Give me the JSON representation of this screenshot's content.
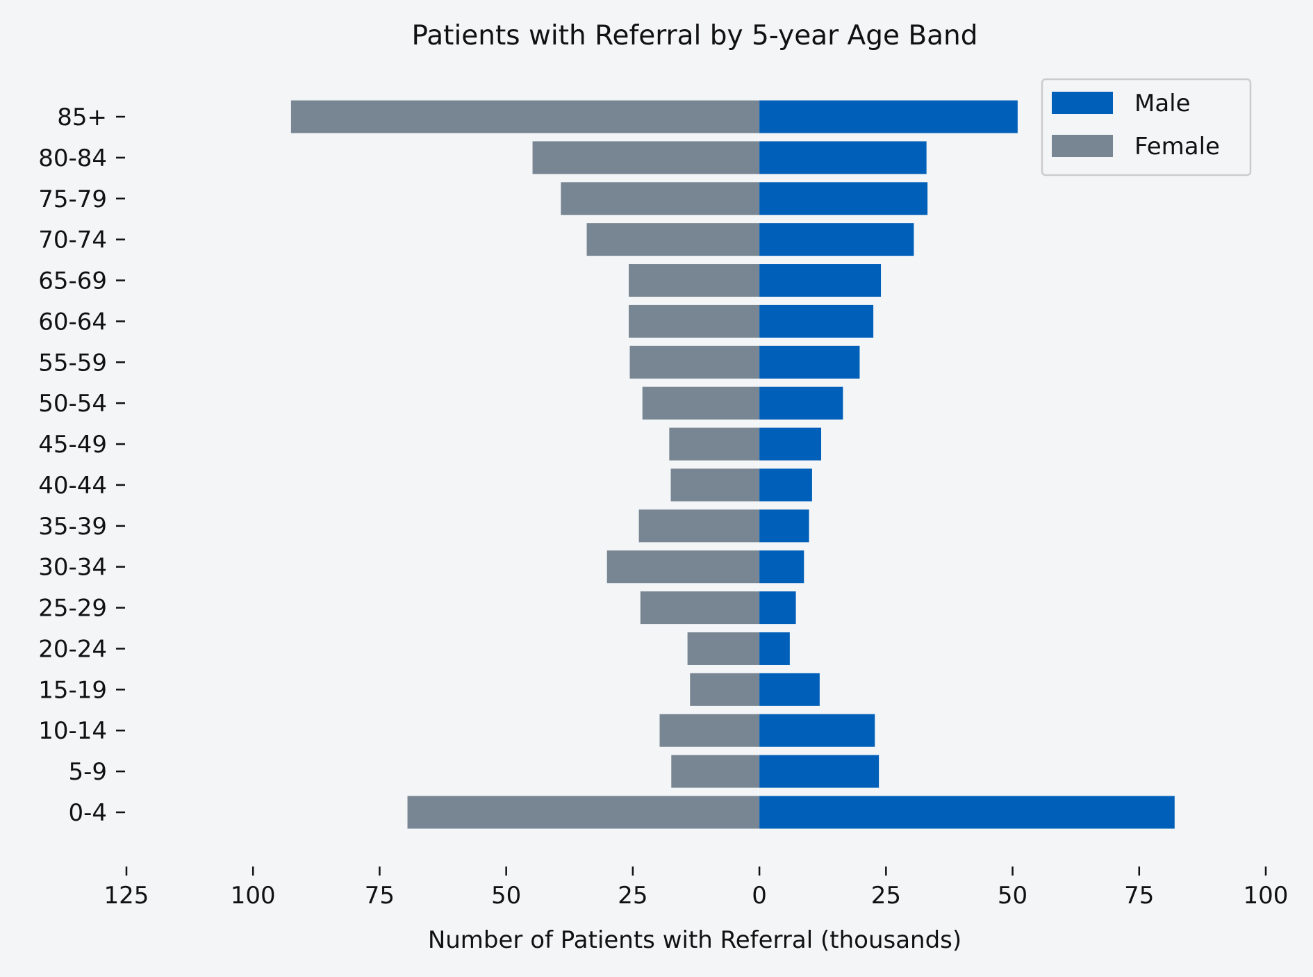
{
  "chart_data": {
    "type": "bar",
    "orientation": "horizontal",
    "layout": "population-pyramid",
    "title": "Patients with Referral by 5-year Age Band",
    "xlabel": "Number of Patients with Referral (thousands)",
    "ylabel": "",
    "xlim": [
      -125,
      100
    ],
    "x_ticks": [
      -125,
      -100,
      -75,
      -50,
      -25,
      0,
      25,
      50,
      75,
      100
    ],
    "x_tick_labels": [
      "125",
      "100",
      "75",
      "50",
      "25",
      "0",
      "25",
      "50",
      "75",
      "100"
    ],
    "categories": [
      "0-4",
      "5-9",
      "10-14",
      "15-19",
      "20-24",
      "25-29",
      "30-34",
      "35-39",
      "40-44",
      "45-49",
      "50-54",
      "55-59",
      "60-64",
      "65-69",
      "70-74",
      "75-79",
      "80-84",
      "85+"
    ],
    "series": [
      {
        "name": "Male",
        "color": "#005fb8",
        "values": [
          82.0,
          23.6,
          22.8,
          11.9,
          6.0,
          7.2,
          8.8,
          9.8,
          10.4,
          12.2,
          16.5,
          19.8,
          22.5,
          24.0,
          30.5,
          33.2,
          33.0,
          51.0
        ]
      },
      {
        "name": "Female",
        "color": "#778692",
        "values": [
          69.5,
          17.4,
          19.7,
          13.7,
          14.2,
          23.5,
          30.1,
          23.8,
          17.5,
          17.8,
          23.1,
          25.6,
          25.8,
          25.8,
          34.1,
          39.2,
          44.8,
          92.5
        ]
      }
    ],
    "legend": {
      "position": "top-right",
      "entries": [
        "Male",
        "Female"
      ]
    },
    "grid": false,
    "background": "#f4f5f7"
  }
}
